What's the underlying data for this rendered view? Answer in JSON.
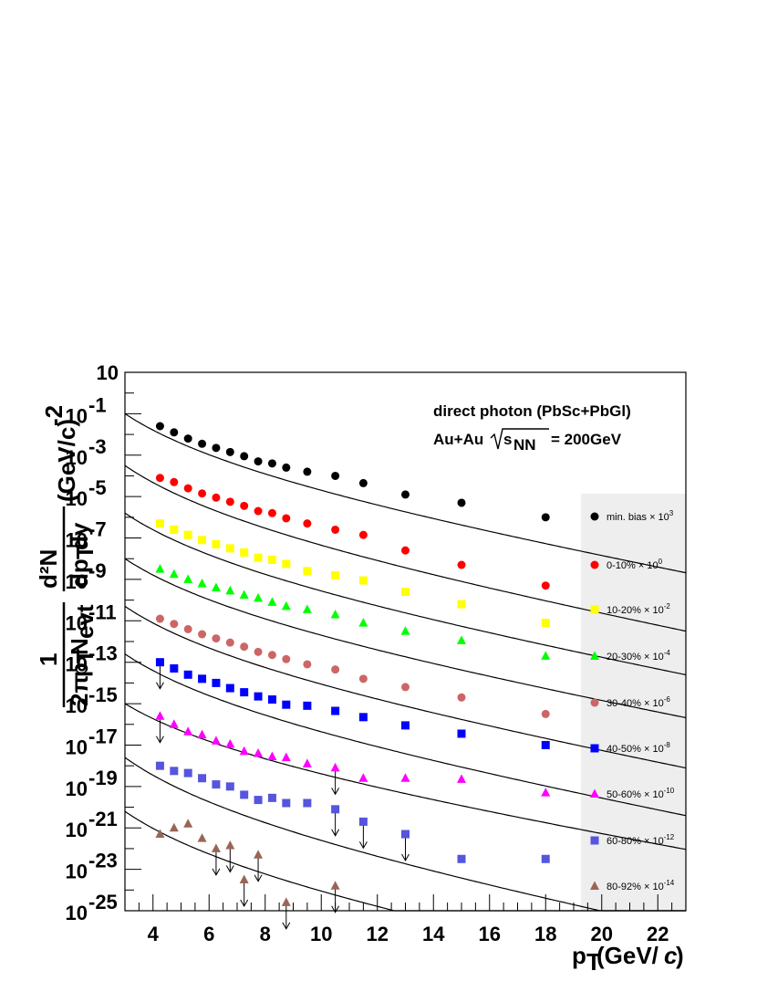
{
  "chart_data": {
    "type": "scatter",
    "title": "",
    "xlabel": {
      "main": "p",
      "sub": "T",
      "rest": "(GeV/",
      "italic": "c",
      "close": ")"
    },
    "ylabel": {
      "lead": "1",
      "two_pi": "2π",
      "pT": "p",
      "pT_sub": "T",
      "N": "N",
      "N_sub": "evt",
      "d2N": "d²N",
      "dpTdy": "dp",
      "dpTdy_sub": "T",
      "dy": "dy",
      "units": "(GeV/c)",
      "units_exp": "-2"
    },
    "xlim": [
      3,
      23
    ],
    "ylim_log10": [
      -25,
      1
    ],
    "y_log_scale": true,
    "x_ticks": [
      "4",
      "6",
      "8",
      "10",
      "12",
      "14",
      "16",
      "18",
      "20",
      "22"
    ],
    "y_ticks": [
      {
        "base": "10",
        "exp": ""
      },
      {
        "base": "10",
        "exp": "-1"
      },
      {
        "base": "10",
        "exp": "-3"
      },
      {
        "base": "10",
        "exp": "-5"
      },
      {
        "base": "10",
        "exp": "-7"
      },
      {
        "base": "10",
        "exp": "-9"
      },
      {
        "base": "10",
        "exp": "-11"
      },
      {
        "base": "10",
        "exp": "-13"
      },
      {
        "base": "10",
        "exp": "-15"
      },
      {
        "base": "10",
        "exp": "-17"
      },
      {
        "base": "10",
        "exp": "-19"
      },
      {
        "base": "10",
        "exp": "-21"
      },
      {
        "base": "10",
        "exp": "-23"
      },
      {
        "base": "10",
        "exp": "-25"
      }
    ],
    "annotation_line1": "direct photon (PbSc+PbGl)",
    "annotation_line2_a": "Au+Au",
    "annotation_line2_s": "s",
    "annotation_line2_sub": "NN",
    "annotation_line2_b": "= 200GeV",
    "legend_position": "right",
    "grid": false,
    "series": [
      {
        "name": "min. bias",
        "scale": "10",
        "scale_exp": "3",
        "color": "#000000",
        "marker": "circle",
        "x": [
          4.25,
          4.75,
          5.25,
          5.75,
          6.25,
          6.75,
          7.25,
          7.75,
          8.25,
          8.75,
          9.5,
          10.5,
          11.5,
          13,
          15,
          18
        ],
        "log10y": [
          -1.6,
          -1.9,
          -2.2,
          -2.45,
          -2.65,
          -2.85,
          -3.05,
          -3.3,
          -3.4,
          -3.6,
          -3.8,
          -4.0,
          -4.35,
          -4.9,
          -5.3,
          -6.0
        ],
        "ul": [],
        "fit": {
          "a": -1.0,
          "b": 1.2,
          "c": -0.14
        }
      },
      {
        "name": "0-10%",
        "scale": "10",
        "scale_exp": "0",
        "color": "#ff0000",
        "marker": "circle",
        "x": [
          4.25,
          4.75,
          5.25,
          5.75,
          6.25,
          6.75,
          7.25,
          7.75,
          8.25,
          8.75,
          9.5,
          10.5,
          11.5,
          13,
          15,
          18
        ],
        "log10y": [
          -4.1,
          -4.3,
          -4.6,
          -4.85,
          -5.05,
          -5.25,
          -5.45,
          -5.7,
          -5.8,
          -6.05,
          -6.3,
          -6.6,
          -6.85,
          -7.6,
          -8.3,
          -9.3
        ],
        "ul": [],
        "fit": {
          "a": -3.5,
          "b": 1.25,
          "c": -0.14
        }
      },
      {
        "name": "10-20%",
        "scale": "10",
        "scale_exp": "-2",
        "color": "#ffff00",
        "marker": "square",
        "x": [
          4.25,
          4.75,
          5.25,
          5.75,
          6.25,
          6.75,
          7.25,
          7.75,
          8.25,
          8.75,
          9.5,
          10.5,
          11.5,
          13,
          15,
          18
        ],
        "log10y": [
          -6.3,
          -6.6,
          -6.85,
          -7.1,
          -7.3,
          -7.5,
          -7.7,
          -7.95,
          -8.05,
          -8.25,
          -8.6,
          -8.8,
          -9.05,
          -9.6,
          -10.2,
          -11.1
        ],
        "ul": [],
        "fit": {
          "a": -5.8,
          "b": 1.22,
          "c": -0.14
        }
      },
      {
        "name": "20-30%",
        "scale": "10",
        "scale_exp": "-4",
        "color": "#00ff00",
        "marker": "triangle",
        "x": [
          4.25,
          4.75,
          5.25,
          5.75,
          6.25,
          6.75,
          7.25,
          7.75,
          8.25,
          8.75,
          9.5,
          10.5,
          11.5,
          13,
          15,
          18
        ],
        "log10y": [
          -8.5,
          -8.75,
          -9.0,
          -9.2,
          -9.4,
          -9.55,
          -9.75,
          -9.9,
          -10.1,
          -10.3,
          -10.45,
          -10.7,
          -11.1,
          -11.5,
          -11.95,
          -12.7
        ],
        "ul": [],
        "fit": {
          "a": -8.0,
          "b": 1.2,
          "c": -0.14
        }
      },
      {
        "name": "30-40%",
        "scale": "10",
        "scale_exp": "-6",
        "color": "#cc6666",
        "marker": "circle",
        "x": [
          4.25,
          4.75,
          5.25,
          5.75,
          6.25,
          6.75,
          7.25,
          7.75,
          8.25,
          8.75,
          9.5,
          10.5,
          11.5,
          13,
          15,
          18
        ],
        "log10y": [
          -10.9,
          -11.15,
          -11.4,
          -11.65,
          -11.85,
          -12.05,
          -12.25,
          -12.5,
          -12.65,
          -12.85,
          -13.1,
          -13.35,
          -13.8,
          -14.2,
          -14.7,
          -15.5
        ],
        "ul": [],
        "fit": {
          "a": -10.3,
          "b": 1.22,
          "c": -0.14
        }
      },
      {
        "name": "40-50%",
        "scale": "10",
        "scale_exp": "-8",
        "color": "#0000ff",
        "marker": "square",
        "x": [
          4.25,
          4.75,
          5.25,
          5.75,
          6.25,
          6.75,
          7.25,
          7.75,
          8.25,
          8.75,
          9.5,
          10.5,
          11.5,
          13,
          15,
          18
        ],
        "log10y": [
          -13.0,
          -13.3,
          -13.6,
          -13.8,
          -14.0,
          -14.25,
          -14.45,
          -14.65,
          -14.8,
          -15.05,
          -15.1,
          -15.35,
          -15.65,
          -16.05,
          -16.45,
          -17.0
        ],
        "ul": [
          0
        ],
        "fit": {
          "a": -12.6,
          "b": 1.22,
          "c": -0.14
        }
      },
      {
        "name": "50-60%",
        "scale": "10",
        "scale_exp": "-10",
        "color": "#ff00ff",
        "marker": "triangle",
        "x": [
          4.25,
          4.75,
          5.25,
          5.75,
          6.25,
          6.75,
          7.25,
          7.75,
          8.25,
          8.75,
          9.5,
          10.5,
          11.5,
          13,
          15,
          18
        ],
        "log10y": [
          -15.6,
          -16.0,
          -16.35,
          -16.5,
          -16.8,
          -16.95,
          -17.3,
          -17.4,
          -17.55,
          -17.6,
          -17.9,
          -18.1,
          -18.6,
          -18.6,
          -18.65,
          -19.3
        ],
        "ul": [
          0,
          11
        ],
        "fit": {
          "a": -15.0,
          "b": 1.1,
          "c": -0.12
        }
      },
      {
        "name": "60-80%",
        "scale": "10",
        "scale_exp": "-12",
        "color": "#5555dd",
        "marker": "square",
        "x": [
          4.25,
          4.75,
          5.25,
          5.75,
          6.25,
          6.75,
          7.25,
          7.75,
          8.25,
          8.75,
          9.5,
          10.5,
          11.5,
          13,
          15,
          18
        ],
        "log10y": [
          -18.0,
          -18.25,
          -18.35,
          -18.6,
          -18.9,
          -19.0,
          -19.4,
          -19.65,
          -19.55,
          -19.8,
          -19.8,
          -20.1,
          -20.7,
          -21.3,
          -22.5,
          -22.5
        ],
        "ul": [
          11,
          12,
          13
        ],
        "fit": {
          "a": -17.6,
          "b": 1.3,
          "c": -0.14
        }
      },
      {
        "name": "80-92%",
        "scale": "10",
        "scale_exp": "-14",
        "color": "#996655",
        "marker": "triangle",
        "x": [
          4.25,
          4.75,
          5.25,
          5.75,
          6.25,
          6.75,
          7.25,
          7.75,
          8.75,
          10.5
        ],
        "log10y": [
          -21.3,
          -21.0,
          -20.8,
          -21.5,
          -22.0,
          -21.85,
          -23.5,
          -22.3,
          -24.6,
          -23.8
        ],
        "ul": [
          4,
          5,
          6,
          7,
          8,
          9
        ],
        "fit": {
          "a": -20.2,
          "b": 1.25,
          "c": -0.14
        }
      }
    ]
  }
}
